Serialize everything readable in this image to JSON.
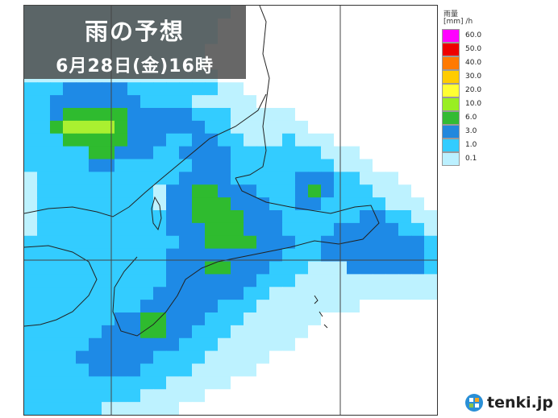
{
  "title": "雨の予想",
  "subtitle": "6月28日(金)16時",
  "legend": {
    "title": "雨量",
    "unit": "[mm] /h",
    "items": [
      {
        "label": "60.0",
        "color": "#ff00ff"
      },
      {
        "label": "50.0",
        "color": "#ee0000"
      },
      {
        "label": "40.0",
        "color": "#ff7a00"
      },
      {
        "label": "30.0",
        "color": "#ffcc00"
      },
      {
        "label": "20.0",
        "color": "#ffff33"
      },
      {
        "label": "10.0",
        "color": "#99ee22"
      },
      {
        "label": "6.0",
        "color": "#33bb33"
      },
      {
        "label": "3.0",
        "color": "#2288dd"
      },
      {
        "label": "1.0",
        "color": "#33ccff"
      },
      {
        "label": "0.1",
        "color": "#bbf0ff"
      }
    ]
  },
  "brand": {
    "name": "tenki.jp"
  },
  "colors": {
    "white": "#ffffff",
    "light": "#bdf2ff",
    "cyan": "#33ccff",
    "blue": "#1e8ae6",
    "green": "#2fbb2f",
    "lime": "#aaf030",
    "coast": "#222222",
    "grid": "#444444"
  },
  "rain_grid": {
    "cols": 32,
    "rows": 32,
    "legend": {
      "W": "white",
      "L": "light",
      "C": "cyan",
      "B": "blue",
      "G": "green",
      "Y": "lime"
    },
    "cells": [
      "LLLLLLLLLLLLLLLLWWWWWWWWWWWWWWWW",
      "LLLLLLLLLLLLLLLWWWWWWWWWWWWWWWWW",
      "LLLLLLLLLLLLLLLWWWWWWWWWWWWWWWWW",
      "LLLLLLLLLLLLLLWWWWWWWWWWWWWWWWWW",
      "LLLLLLLLLLLLLLWWWWWWWWWWWWWWWWWW",
      "LLLLLLLLLLLLLLLWWWWWWWWWWWWWWWWW",
      "CCCBBBBBCCCCCCCLLWWWWWWWWWWWWWWW",
      "CCBBBBBBBCCCCLLLLLWWWWWWWWWWWWWW",
      "CCBGGGGGBBBBBCCCLLLLLWWWWWWWWWWW",
      "CCGYYYYGBBBBBBCCLLLLLLWWWWWWWWWW",
      "CCCGGGGGBBBCCBBCCLLLCLLLWWWWWWWW",
      "CCCCCGGBBBCCBBBBCCCCCCCLLLWWWWWW",
      "CCCCCBBCCCCCCBBBCCCCCCCCLLLWWWWW",
      "LCCCCCCCCCCCBBBBCCCCCBBBCCLLLWWW",
      "LCCCCCCCCCLBBGGBBBCCCBGBCCCLLLWW",
      "LCCCCCCCCCLBBGGGBBBCCBBCCCCCLLLW",
      "LCCCCCCCCCCBBGGGGBBBCCCCCCBBCCLL",
      "LCCCCCCCCCCBBBGGGBBBCCCCBBBBBCCL",
      "CCCCCCCCCCCCBBGGGGBBBCCBBBBBBBBC",
      "CCCCCCCCCCCBBBBBBBBBCCCBBBBBBBBC",
      "CCCCCCCCCCCBBBGGBBBCCCLLLBBBBBBC",
      "CCCCCCCCCCCBBBBBBBCCCLLLLLLLLLLL",
      "CCCCCCCCCCBBBBBBBCCLLLLLLLLLLLLL",
      "CCCCCCCCCBBBBBBCCCLLLLLLLLWWWWWW",
      "CCCCCCCBBGGBBBCCCLLLLLLWWWWWWWWW",
      "CCCCCCBBBGGBBCCCLLLLLLWWWWWWWWWW",
      "CCCCCBBBBBBBCCCLLLLLLWWWWWWWWWWW",
      "CCCCBBBBBBCCCCLLLLLWWWWWWWWWWWWW",
      "CCCCCBBBBCCCCLLLLLWWWWWWWWWWWWWW",
      "CCCCCCCCCCCLLLLLWWWWWWWWWWWWWWWW",
      "CCCCCCCCCLLLLLWWWWWWWWWWWWWWWWWW",
      "CCCCCCLLLLLLWWWWWWWWWWWWWWWWWWWW"
    ]
  }
}
